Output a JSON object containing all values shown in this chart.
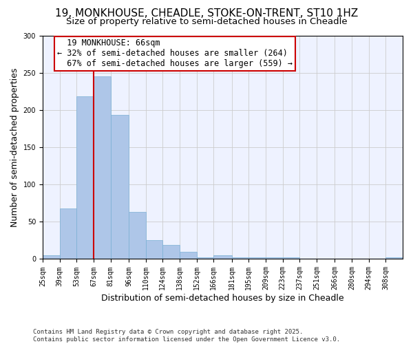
{
  "title": "19, MONKHOUSE, CHEADLE, STOKE-ON-TRENT, ST10 1HZ",
  "subtitle": "Size of property relative to semi-detached houses in Cheadle",
  "xlabel": "Distribution of semi-detached houses by size in Cheadle",
  "ylabel": "Number of semi-detached properties",
  "bar_values": [
    5,
    68,
    218,
    245,
    193,
    63,
    25,
    19,
    10,
    2,
    5,
    2,
    2,
    2,
    2,
    0,
    0,
    0,
    0,
    0,
    2
  ],
  "bin_edges": [
    25,
    39,
    53,
    67,
    81,
    96,
    110,
    124,
    138,
    152,
    166,
    181,
    195,
    209,
    223,
    237,
    251,
    266,
    280,
    294,
    308
  ],
  "tick_labels": [
    "25sqm",
    "39sqm",
    "53sqm",
    "67sqm",
    "81sqm",
    "96sqm",
    "110sqm",
    "124sqm",
    "138sqm",
    "152sqm",
    "166sqm",
    "181sqm",
    "195sqm",
    "209sqm",
    "223sqm",
    "237sqm",
    "251sqm",
    "266sqm",
    "280sqm",
    "294sqm",
    "308sqm"
  ],
  "property_size": 66,
  "vline_bin_index": 3,
  "annotation_title": "19 MONKHOUSE: 66sqm",
  "annotation_line1": "← 32% of semi-detached houses are smaller (264)",
  "annotation_line2": "67% of semi-detached houses are larger (559) →",
  "bar_color": "#aec6e8",
  "bar_edge_color": "#7ab0d4",
  "vline_color": "#cc0000",
  "annotation_box_color": "#ffffff",
  "annotation_box_edge": "#cc0000",
  "grid_color": "#cccccc",
  "background_color": "#eef2ff",
  "footer_line1": "Contains HM Land Registry data © Crown copyright and database right 2025.",
  "footer_line2": "Contains public sector information licensed under the Open Government Licence v3.0.",
  "ylim": [
    0,
    300
  ],
  "title_fontsize": 11,
  "subtitle_fontsize": 9.5,
  "axis_label_fontsize": 9,
  "tick_fontsize": 7,
  "footer_fontsize": 6.5,
  "annotation_fontsize": 8.5
}
